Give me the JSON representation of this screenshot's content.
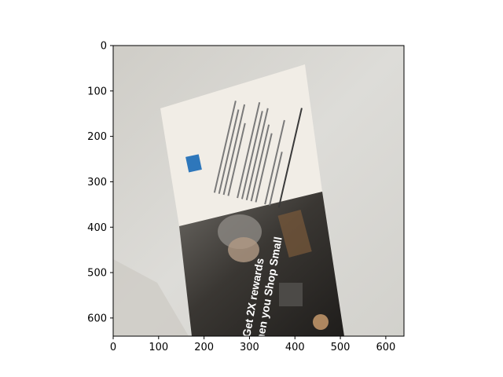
{
  "figure": {
    "x_ticks": [
      "0",
      "100",
      "200",
      "300",
      "400",
      "500",
      "600"
    ],
    "y_ticks": [
      "0",
      "100",
      "200",
      "300",
      "400",
      "500",
      "600"
    ],
    "x_range": [
      0,
      640
    ],
    "y_range": [
      640,
      0
    ],
    "y_inverted": true,
    "grid": false
  },
  "photo": {
    "promo_line_1": "Get 2X rewards",
    "promo_line_2": "when you Shop Small",
    "colors": {
      "background_wall": "#d9d8d3",
      "card_paper": "#efebe3",
      "photo_dark": "#2e2c2a",
      "amex_blue": "#2e77bb"
    }
  }
}
